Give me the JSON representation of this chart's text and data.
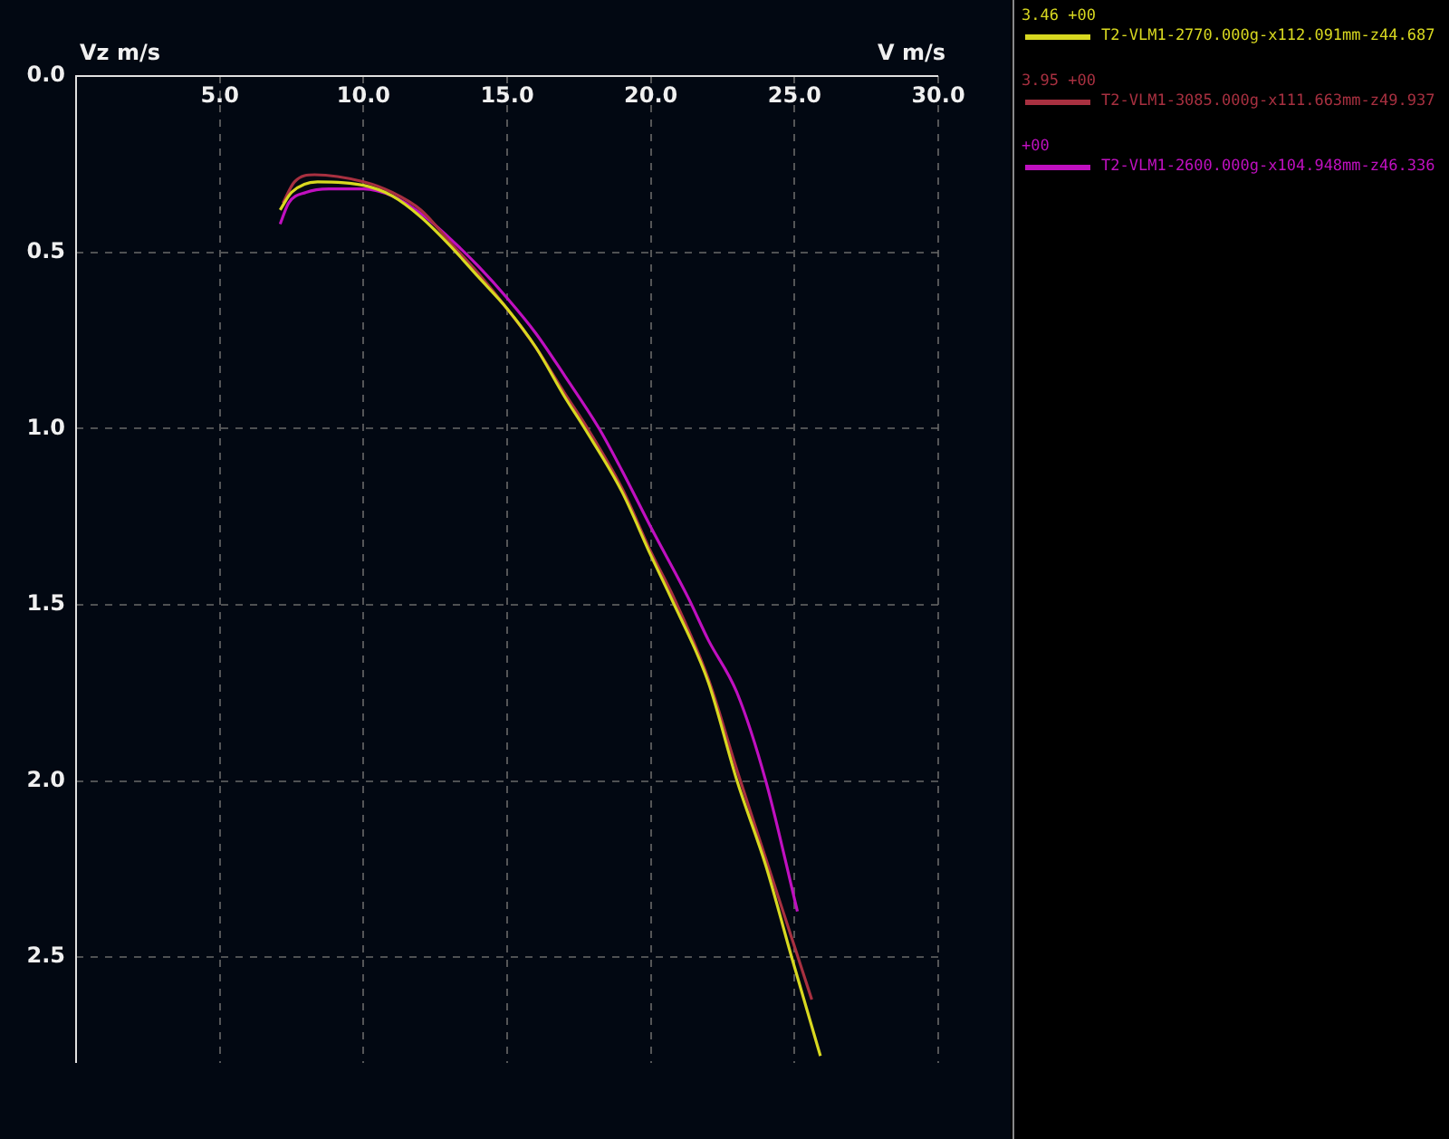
{
  "chart_data": {
    "type": "line",
    "xlabel": "V m/s",
    "ylabel": "Vz m/s",
    "xlim": [
      0,
      30
    ],
    "ylim": [
      2.8,
      0
    ],
    "xticks": [
      {
        "value": 5,
        "label": "5.0"
      },
      {
        "value": 10,
        "label": "10.0"
      },
      {
        "value": 15,
        "label": "15.0"
      },
      {
        "value": 20,
        "label": "20.0"
      },
      {
        "value": 25,
        "label": "25.0"
      },
      {
        "value": 30,
        "label": "30.0"
      }
    ],
    "yticks": [
      {
        "value": 0,
        "label": "0.0"
      },
      {
        "value": 0.5,
        "label": "0.5"
      },
      {
        "value": 1,
        "label": "1.0"
      },
      {
        "value": 1.5,
        "label": "1.5"
      },
      {
        "value": 2,
        "label": "2.0"
      },
      {
        "value": 2.5,
        "label": "2.5"
      }
    ],
    "grid": true,
    "legend": "right",
    "series": [
      {
        "name": "3.46 +00\nT2-VLM1-2770.000g-x112.091mm-z44.687",
        "color": "#d8d820",
        "x": [
          7.1,
          7.5,
          8.4,
          10,
          11,
          12,
          13,
          14,
          15,
          16,
          17,
          17.7,
          19,
          20,
          20.7,
          22,
          23,
          24,
          24.9,
          25.9
        ],
        "values": [
          0.38,
          0.33,
          0.3,
          0.31,
          0.34,
          0.4,
          0.48,
          0.57,
          0.66,
          0.77,
          0.91,
          1.0,
          1.18,
          1.36,
          1.48,
          1.72,
          2.0,
          2.24,
          2.5,
          2.78
        ]
      },
      {
        "name": "3.95 +00\nT2-VLM1-3085.000g-x111.663mm-z49.937",
        "color": "#a83040",
        "x": [
          7.2,
          7.6,
          8.3,
          10,
          11,
          12,
          13,
          14,
          15,
          16,
          17,
          17.8,
          19,
          20,
          20.8,
          22,
          23,
          24,
          25,
          25.6
        ],
        "values": [
          0.36,
          0.3,
          0.28,
          0.3,
          0.33,
          0.38,
          0.47,
          0.56,
          0.66,
          0.77,
          0.9,
          1.0,
          1.17,
          1.35,
          1.48,
          1.71,
          1.97,
          2.22,
          2.47,
          2.62
        ]
      },
      {
        "name": "+00\nT2-VLM1-2600.000g-x104.948mm-z46.336",
        "color": "#c010c0",
        "x": [
          7.1,
          7.4,
          8,
          8.8,
          10,
          11,
          12,
          13,
          14,
          15,
          16,
          17,
          18.2,
          19,
          20,
          21.3,
          22,
          23,
          24,
          25.1
        ],
        "values": [
          0.42,
          0.36,
          0.33,
          0.32,
          0.32,
          0.34,
          0.39,
          0.46,
          0.54,
          0.63,
          0.73,
          0.85,
          1.0,
          1.12,
          1.28,
          1.48,
          1.6,
          1.75,
          2.0,
          2.37
        ]
      }
    ]
  }
}
